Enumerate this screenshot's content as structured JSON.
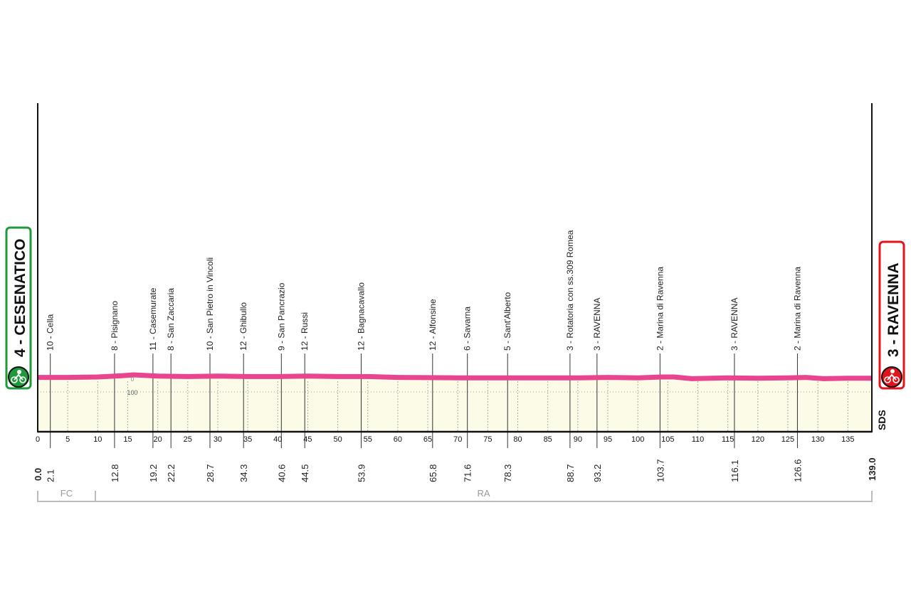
{
  "start": {
    "label": "4 - CESENATICO",
    "color": "#1e9a3c",
    "icon": "cyclist-start-icon"
  },
  "finish": {
    "label": "3 - RAVENNA",
    "color": "#e3131b",
    "icon": "cyclist-finish-icon"
  },
  "brand": "SDS",
  "elevation_labels": [
    "0",
    "100"
  ],
  "regions": [
    {
      "label": "FC",
      "from_km": 0,
      "to_km": 9.6
    },
    {
      "label": "RA",
      "from_km": 9.6,
      "to_km": 139.0
    }
  ],
  "chart_data": {
    "type": "area",
    "xlabel": "",
    "ylabel": "",
    "xlim": [
      0,
      139
    ],
    "x_ticks": [
      0,
      5,
      10,
      15,
      20,
      25,
      30,
      35,
      40,
      45,
      50,
      55,
      60,
      65,
      70,
      75,
      80,
      85,
      90,
      95,
      100,
      105,
      110,
      115,
      120,
      125,
      130,
      135
    ],
    "line_color": "#e8448f",
    "fill_color": "#fbfbe8",
    "grid": true,
    "profile": {
      "km": [
        0,
        5,
        10,
        14,
        16,
        20,
        25,
        30,
        35,
        40,
        45,
        50,
        55,
        60,
        70,
        80,
        90,
        95,
        100,
        104,
        106,
        109,
        115,
        120,
        125,
        128,
        131,
        135,
        139
      ],
      "elevation": [
        4,
        4,
        5,
        8,
        10,
        7,
        6,
        7,
        6,
        6,
        7,
        6,
        6,
        4,
        3,
        3,
        3,
        4,
        3,
        5,
        5,
        1,
        3,
        2,
        3,
        4,
        1,
        2,
        2
      ]
    },
    "waypoints": [
      {
        "km": "0.0",
        "label": ""
      },
      {
        "km": "2.1",
        "label": "10 - Cella"
      },
      {
        "km": "12.8",
        "label": "8 - Pisignano"
      },
      {
        "km": "19.2",
        "label": "11 - Casemurate"
      },
      {
        "km": "22.2",
        "label": "8 - San Zaccaria"
      },
      {
        "km": "28.7",
        "label": "10 - San Pietro in Vincoli"
      },
      {
        "km": "34.3",
        "label": "12 - Ghibullo"
      },
      {
        "km": "40.6",
        "label": "9 - San Pancrazio"
      },
      {
        "km": "44.5",
        "label": "12 - Russi"
      },
      {
        "km": "53.9",
        "label": "12 - Bagnacavallo"
      },
      {
        "km": "65.8",
        "label": "12 - Alfonsine"
      },
      {
        "km": "71.6",
        "label": "6 - Savarna"
      },
      {
        "km": "78.3",
        "label": "5 - Sant'Alberto"
      },
      {
        "km": "88.7",
        "label": "3 - Rotatoria con ss.309 Romea"
      },
      {
        "km": "93.2",
        "label": "3 - RAVENNA"
      },
      {
        "km": "103.7",
        "label": "2 - Marina di Ravenna"
      },
      {
        "km": "116.1",
        "label": "3 - RAVENNA"
      },
      {
        "km": "126.6",
        "label": "2 - Marina di Ravenna"
      },
      {
        "km": "139.0",
        "label": ""
      }
    ]
  }
}
